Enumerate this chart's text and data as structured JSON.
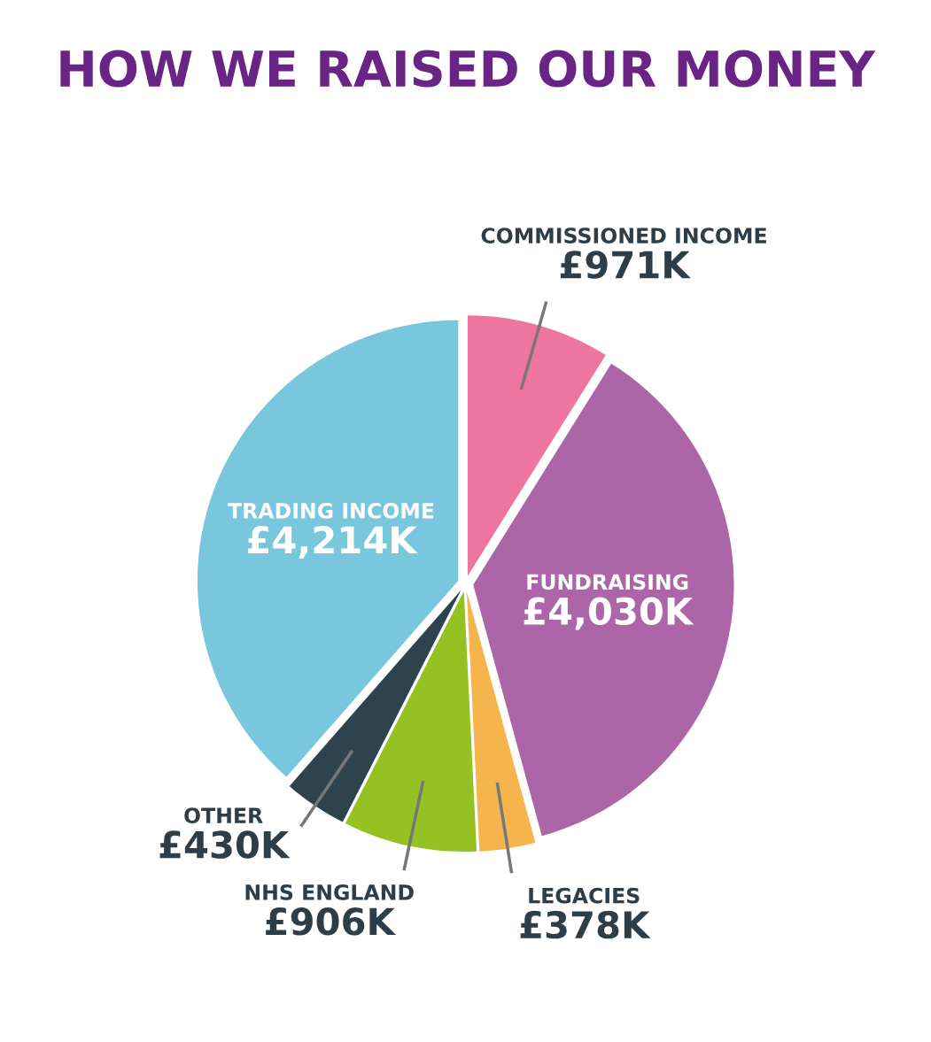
{
  "chart_data": {
    "type": "pie",
    "title": "HOW WE RAISED OUR MONEY",
    "categories": [
      "COMMISSIONED INCOME",
      "FUNDRAISING",
      "LEGACIES",
      "NHS ENGLAND",
      "OTHER",
      "TRADING INCOME"
    ],
    "values": [
      971,
      4030,
      378,
      906,
      430,
      4214
    ],
    "value_labels": [
      "£971K",
      "£4,030K",
      "£378K",
      "£906K",
      "£430K",
      "£4,214K"
    ],
    "colors": [
      "#ee75a0",
      "#ac66a8",
      "#f5b44c",
      "#95c123",
      "#2d444e",
      "#78c7dd"
    ]
  }
}
